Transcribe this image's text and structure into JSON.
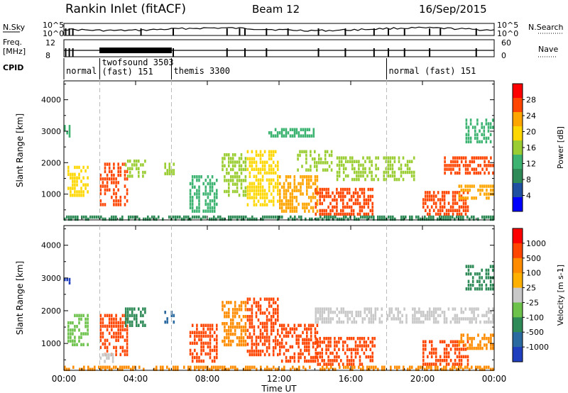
{
  "header": {
    "station": "Rankin Inlet (fitACF)",
    "beam": "Beam 12",
    "date": "16/Sep/2015"
  },
  "colors": {
    "power_scale": [
      "#0000ff",
      "#1f4fa0",
      "#2e8b57",
      "#3cb371",
      "#9acd32",
      "#ffd700",
      "#ffa500",
      "#ff4500",
      "#ff0000"
    ],
    "velocity_scale": [
      "#1f3fbf",
      "#2a6aa0",
      "#2e8b57",
      "#6cc24a",
      "#c8c8c8",
      "#ffb000",
      "#ff8c00",
      "#ff4500",
      "#ff0000"
    ]
  },
  "strip_panels": {
    "nsky_label": "N.Sky",
    "nsearch_label": "N.Search",
    "nsky_ticks_left": [
      "10^5",
      "10^0"
    ],
    "nsky_ticks_right": [
      "10^5",
      "10^0"
    ],
    "freq_label": "Freq.",
    "freq_unit": "[MHz]",
    "freq_ticks": [
      "12",
      "8"
    ],
    "nave_label": "Nave",
    "nave_ticks": [
      "60",
      "0"
    ],
    "cpid_label": "CPID",
    "cpid_segments": [
      {
        "start_hour": 0,
        "end_hour": 2,
        "text": "normal"
      },
      {
        "start_hour": 2,
        "end_hour": 6,
        "text": "twofsound 3503",
        "text2": "(fast) 151"
      },
      {
        "start_hour": 6,
        "end_hour": 18,
        "text": "themis 3300"
      },
      {
        "start_hour": 18,
        "end_hour": 24,
        "text": "normal (fast) 151"
      }
    ]
  },
  "chart_data": [
    {
      "type": "heatmap",
      "title": "",
      "ylabel": "Slant Range [km]",
      "xlabel": "",
      "xlim_hours": [
        0,
        24
      ],
      "ylim_km": [
        180,
        4600
      ],
      "y_ticks": [
        1000,
        2000,
        3000,
        4000
      ],
      "x_ticks": [
        "00:00",
        "04:00",
        "08:00",
        "12:00",
        "16:00",
        "20:00",
        "00:00"
      ],
      "colorbar_label": "Power [dB]",
      "colorbar_ticks": [
        "28",
        "24",
        "20",
        "16",
        "12",
        "8",
        "4"
      ],
      "colorbar_range": [
        0,
        30
      ],
      "mode_change_hours": [
        2,
        6,
        18
      ],
      "patches": [
        {
          "t0": 0.2,
          "t1": 1.4,
          "r0": 900,
          "r1": 1900,
          "level": 18
        },
        {
          "t0": 0.0,
          "t1": 0.4,
          "r0": 2800,
          "r1": 3200,
          "level": 10
        },
        {
          "t0": 2.0,
          "t1": 3.6,
          "r0": 600,
          "r1": 2000,
          "level": 24
        },
        {
          "t0": 3.4,
          "t1": 4.6,
          "r0": 1500,
          "r1": 2100,
          "level": 16
        },
        {
          "t0": 5.6,
          "t1": 6.2,
          "r0": 1600,
          "r1": 2000,
          "level": 16
        },
        {
          "t0": 7.0,
          "t1": 8.6,
          "r0": 400,
          "r1": 1600,
          "level": 12
        },
        {
          "t0": 8.8,
          "t1": 10.2,
          "r0": 900,
          "r1": 2300,
          "level": 14
        },
        {
          "t0": 10.2,
          "t1": 12.0,
          "r0": 600,
          "r1": 2400,
          "level": 18
        },
        {
          "t0": 12.0,
          "t1": 14.2,
          "r0": 400,
          "r1": 1600,
          "level": 20
        },
        {
          "t0": 13.0,
          "t1": 15.0,
          "r0": 1700,
          "r1": 2400,
          "level": 16
        },
        {
          "t0": 14.0,
          "t1": 17.4,
          "r0": 300,
          "r1": 1200,
          "level": 24
        },
        {
          "t0": 15.2,
          "t1": 17.6,
          "r0": 1400,
          "r1": 2200,
          "level": 14
        },
        {
          "t0": 17.8,
          "t1": 19.6,
          "r0": 1400,
          "r1": 2200,
          "level": 14
        },
        {
          "t0": 20.0,
          "t1": 22.6,
          "r0": 300,
          "r1": 1100,
          "level": 24
        },
        {
          "t0": 21.2,
          "t1": 24.0,
          "r0": 1600,
          "r1": 2200,
          "level": 24
        },
        {
          "t0": 22.0,
          "t1": 24.0,
          "r0": 800,
          "r1": 1300,
          "level": 22
        },
        {
          "t0": 22.4,
          "t1": 24.0,
          "r0": 2600,
          "r1": 3400,
          "level": 12
        },
        {
          "t0": 11.4,
          "t1": 14.0,
          "r0": 2800,
          "r1": 3100,
          "level": 10
        },
        {
          "t0": 0.0,
          "t1": 24.0,
          "r0": 190,
          "r1": 320,
          "level": 8
        }
      ]
    },
    {
      "type": "heatmap",
      "title": "",
      "ylabel": "Slant Range [km]",
      "xlabel": "Time UT",
      "xlim_hours": [
        0,
        24
      ],
      "ylim_km": [
        180,
        4600
      ],
      "y_ticks": [
        1000,
        2000,
        3000,
        4000
      ],
      "x_ticks": [
        "00:00",
        "04:00",
        "08:00",
        "12:00",
        "16:00",
        "20:00",
        "00:00"
      ],
      "colorbar_label": "Velocity [m s-1]",
      "colorbar_ticks": [
        "1000",
        "500",
        "100",
        "25",
        "-25",
        "-100",
        "-500",
        "-1000"
      ],
      "colorbar_range": [
        -1000,
        1000
      ],
      "mode_change_hours": [
        2,
        6,
        18
      ],
      "patches": [
        {
          "t0": 0.2,
          "t1": 1.4,
          "r0": 900,
          "r1": 1900,
          "level": 1
        },
        {
          "t0": 0.0,
          "t1": 0.4,
          "r0": 2800,
          "r1": 3200,
          "level": 4
        },
        {
          "t0": 2.0,
          "t1": 3.6,
          "r0": 600,
          "r1": 1900,
          "level": -3
        },
        {
          "t0": 2.0,
          "t1": 2.8,
          "r0": 400,
          "r1": 700,
          "level": 0
        },
        {
          "t0": 3.4,
          "t1": 4.6,
          "r0": 1500,
          "r1": 2100,
          "level": 2
        },
        {
          "t0": 5.6,
          "t1": 6.2,
          "r0": 1600,
          "r1": 2000,
          "level": 3
        },
        {
          "t0": 7.0,
          "t1": 8.6,
          "r0": 400,
          "r1": 1600,
          "level": -3
        },
        {
          "t0": 8.8,
          "t1": 10.2,
          "r0": 900,
          "r1": 2300,
          "level": -2
        },
        {
          "t0": 10.2,
          "t1": 12.0,
          "r0": 600,
          "r1": 2400,
          "level": -3
        },
        {
          "t0": 12.0,
          "t1": 14.2,
          "r0": 400,
          "r1": 1600,
          "level": -3
        },
        {
          "t0": 14.0,
          "t1": 17.4,
          "r0": 300,
          "r1": 1200,
          "level": -3
        },
        {
          "t0": 14.0,
          "t1": 17.8,
          "r0": 1600,
          "r1": 2100,
          "level": 0
        },
        {
          "t0": 18.0,
          "t1": 24.0,
          "r0": 1600,
          "r1": 2100,
          "level": 0
        },
        {
          "t0": 20.0,
          "t1": 22.6,
          "r0": 300,
          "r1": 1100,
          "level": -3
        },
        {
          "t0": 22.0,
          "t1": 24.0,
          "r0": 800,
          "r1": 1300,
          "level": -2
        },
        {
          "t0": 22.4,
          "t1": 24.0,
          "r0": 2600,
          "r1": 3400,
          "level": 2
        },
        {
          "t0": 0.0,
          "t1": 24.0,
          "r0": 190,
          "r1": 320,
          "level": -2
        }
      ]
    }
  ]
}
